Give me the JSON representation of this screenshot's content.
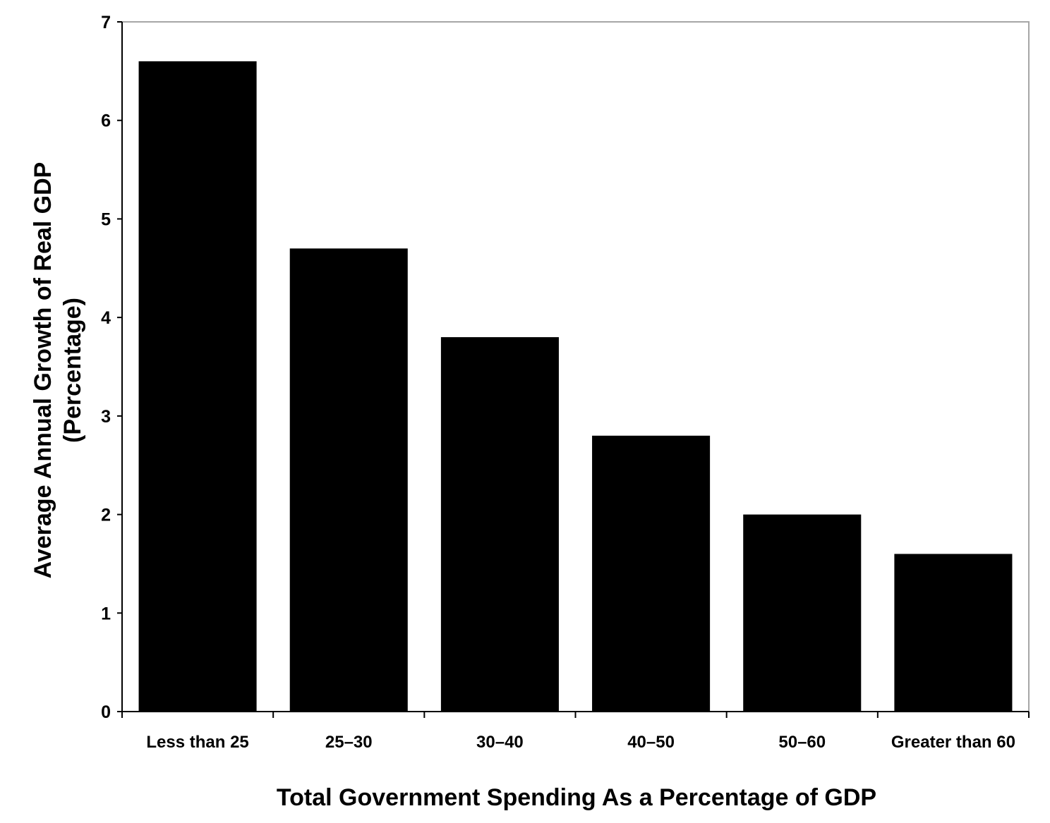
{
  "chart_data": {
    "type": "bar",
    "title": "",
    "xlabel": "Total Government Spending As a Percentage of GDP",
    "ylabel_line1": "Average Annual Growth of Real GDP",
    "ylabel_line2": "(Percentage)",
    "categories": [
      "Less than 25",
      "25–30",
      "30–40",
      "40–50",
      "50–60",
      "Greater than 60"
    ],
    "values": [
      6.6,
      4.7,
      3.8,
      2.8,
      2.0,
      1.6
    ],
    "ylim": [
      0,
      7
    ],
    "yticks": [
      "0",
      "1",
      "2",
      "3",
      "4",
      "5",
      "6",
      "7"
    ],
    "grid": false,
    "legend": "none",
    "bar_color": "#000000"
  }
}
